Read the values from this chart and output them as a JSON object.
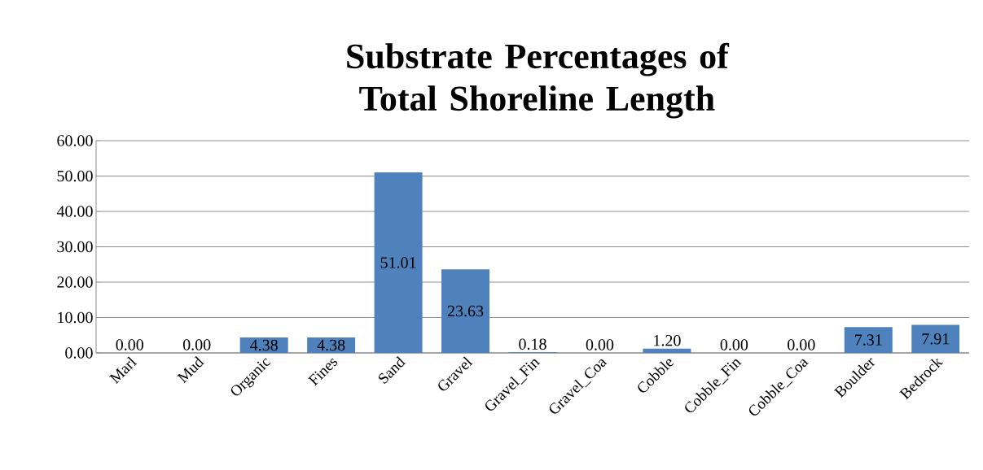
{
  "chart_data": {
    "type": "bar",
    "title": "Substrate Percentages of Total Shoreline Length",
    "categories": [
      "Marl",
      "Mud",
      "Organic",
      "Fines",
      "Sand",
      "Gravel",
      "Gravel_Fin",
      "Gravel_Coa",
      "Cobble",
      "Cobble_Fin",
      "Cobble_Coa",
      "Boulder",
      "Bedrock"
    ],
    "values": [
      0,
      0,
      4.38,
      4.38,
      51.01,
      23.63,
      0.18,
      0,
      1.2,
      0,
      0,
      7.31,
      7.91
    ],
    "value_labels": [
      "0.00",
      "0.00",
      "4.38",
      "4.38",
      "51.01",
      "23.63",
      "0.18",
      "0.00",
      "1.20",
      "0.00",
      "0.00",
      "7.31",
      "7.91"
    ],
    "color": "#4f81bd",
    "ylim": [
      0,
      60
    ],
    "yticks": [
      {
        "value": 0,
        "label": "0.00"
      },
      {
        "value": 10,
        "label": "10.00"
      },
      {
        "value": 20,
        "label": "20.00"
      },
      {
        "value": 30,
        "label": "30.00"
      },
      {
        "value": 40,
        "label": "40.00"
      },
      {
        "value": 50,
        "label": "50.00"
      },
      {
        "value": 60,
        "label": "60.00"
      }
    ],
    "grid": "y"
  }
}
